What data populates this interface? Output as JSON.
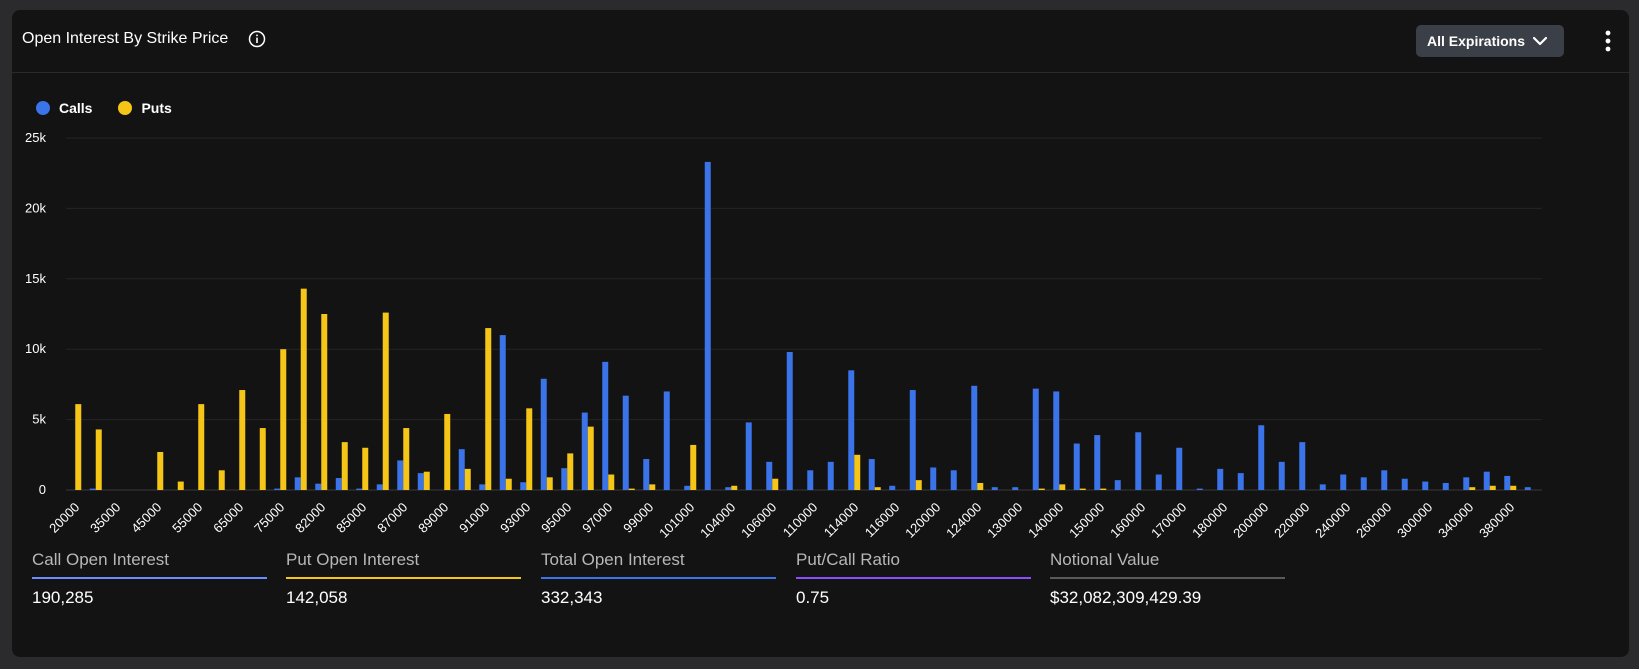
{
  "header": {
    "title": "Open Interest By Strike Price",
    "expirations_label": "All Expirations",
    "icons": {
      "info": "info-icon",
      "dropdown": "chevron-down-icon",
      "more": "more-vertical-icon"
    }
  },
  "legend": [
    {
      "label": "Calls",
      "color": "#3b73e8"
    },
    {
      "label": "Puts",
      "color": "#f5c518"
    }
  ],
  "chart_data": {
    "type": "bar",
    "title": "Open Interest By Strike Price",
    "xlabel": "",
    "ylabel": "",
    "ylim": [
      0,
      25000
    ],
    "yticks": [
      "0",
      "5k",
      "10k",
      "15k",
      "20k",
      "25k"
    ],
    "grid": true,
    "legend_position": "top-left",
    "tick_labels": [
      "20000",
      "35000",
      "45000",
      "55000",
      "65000",
      "75000",
      "82000",
      "85000",
      "87000",
      "89000",
      "91000",
      "93000",
      "95000",
      "97000",
      "99000",
      "101000",
      "104000",
      "106000",
      "110000",
      "114000",
      "116000",
      "120000",
      "124000",
      "130000",
      "140000",
      "150000",
      "160000",
      "170000",
      "180000",
      "200000",
      "220000",
      "240000",
      "260000",
      "300000",
      "340000",
      "380000"
    ],
    "series": [
      {
        "name": "Calls",
        "color": "#3b73e8",
        "values": [
          0,
          100,
          0,
          0,
          0,
          0,
          0,
          0,
          0,
          0,
          100,
          900,
          450,
          850,
          100,
          400,
          2100,
          1200,
          0,
          2900,
          400,
          11000,
          550,
          7900,
          1550,
          5500,
          9100,
          6700,
          2200,
          7000,
          300,
          23300,
          200,
          4800,
          2000,
          9800,
          1400,
          2000,
          8500,
          2200,
          300,
          7100,
          1600,
          1400,
          7400,
          200,
          200,
          7200,
          7000,
          3300,
          3900,
          700,
          4100,
          1100,
          3000,
          100,
          1500,
          1200,
          4600,
          2000,
          3400,
          400,
          1100,
          900,
          1400,
          800,
          600,
          500,
          900,
          1300,
          1000,
          200
        ]
      },
      {
        "name": "Puts",
        "color": "#f5c518",
        "values": [
          6100,
          4300,
          0,
          0,
          2700,
          600,
          6100,
          1400,
          7100,
          4400,
          10000,
          14300,
          12500,
          3400,
          3000,
          12600,
          4400,
          1300,
          5400,
          1500,
          11500,
          800,
          5800,
          900,
          2600,
          4500,
          1100,
          100,
          400,
          0,
          3200,
          0,
          300,
          0,
          800,
          0,
          0,
          0,
          2500,
          200,
          0,
          700,
          0,
          0,
          500,
          0,
          0,
          100,
          400,
          100,
          100,
          0,
          0,
          0,
          0,
          0,
          0,
          0,
          0,
          0,
          0,
          0,
          0,
          0,
          0,
          0,
          0,
          0,
          200,
          300,
          300,
          0
        ]
      }
    ]
  },
  "stats": [
    {
      "label": "Call Open Interest",
      "value": "190,285",
      "color": "#6b8cff"
    },
    {
      "label": "Put Open Interest",
      "value": "142,058",
      "color": "#f5c518"
    },
    {
      "label": "Total Open Interest",
      "value": "332,343",
      "color": "#3b73e8"
    },
    {
      "label": "Put/Call Ratio",
      "value": "0.75",
      "color": "#8a4dff"
    },
    {
      "label": "Notional Value",
      "value": "$32,082,309,429.39",
      "color": "#5a5a5a"
    }
  ]
}
